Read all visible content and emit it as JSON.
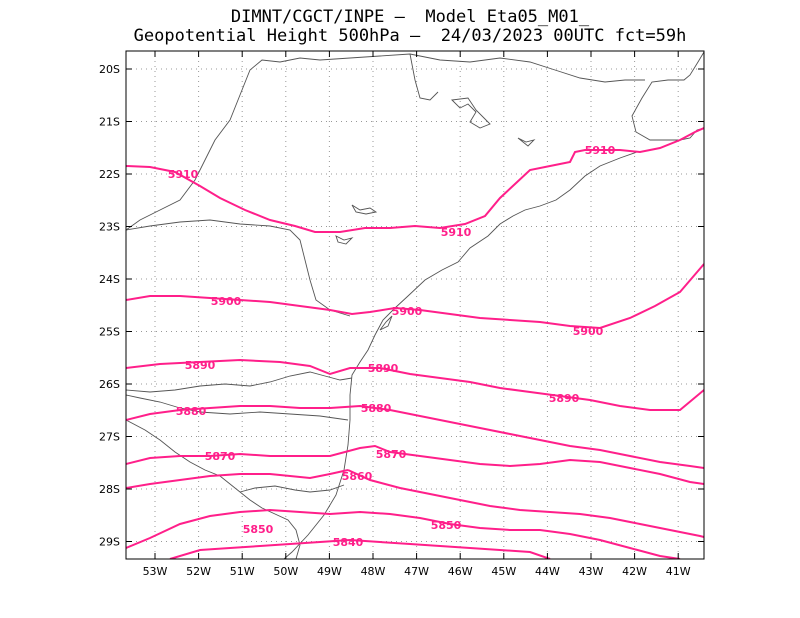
{
  "title": {
    "line1": "DIMNT/CGCT/INPE –  Model Eta05_M01_",
    "line2": "Geopotential Height 500hPa –  24/03/2023 00UTC fct=59h"
  },
  "map_data": {
    "lon_ticks": [
      "53W",
      "52W",
      "51W",
      "50W",
      "49W",
      "48W",
      "47W",
      "46W",
      "45W",
      "44W",
      "43W",
      "42W",
      "41W"
    ],
    "lat_ticks": [
      "20S",
      "21S",
      "22S",
      "23S",
      "24S",
      "25S",
      "26S",
      "27S",
      "28S",
      "29S"
    ],
    "contour_color": "#ff1f8a",
    "contours": [
      {
        "value": "5910",
        "labels": [
          "5910",
          "5910",
          "5910"
        ]
      },
      {
        "value": "5900",
        "labels": [
          "5900",
          "5900",
          "5900"
        ]
      },
      {
        "value": "5890",
        "labels": [
          "5890",
          "5890",
          "5890"
        ]
      },
      {
        "value": "5880",
        "labels": [
          "5880",
          "5880"
        ]
      },
      {
        "value": "5870",
        "labels": [
          "5870",
          "5870"
        ]
      },
      {
        "value": "5860",
        "labels": [
          "5860"
        ]
      },
      {
        "value": "5850",
        "labels": [
          "5850",
          "5850"
        ]
      },
      {
        "value": "5840",
        "labels": [
          "5840"
        ]
      }
    ]
  }
}
